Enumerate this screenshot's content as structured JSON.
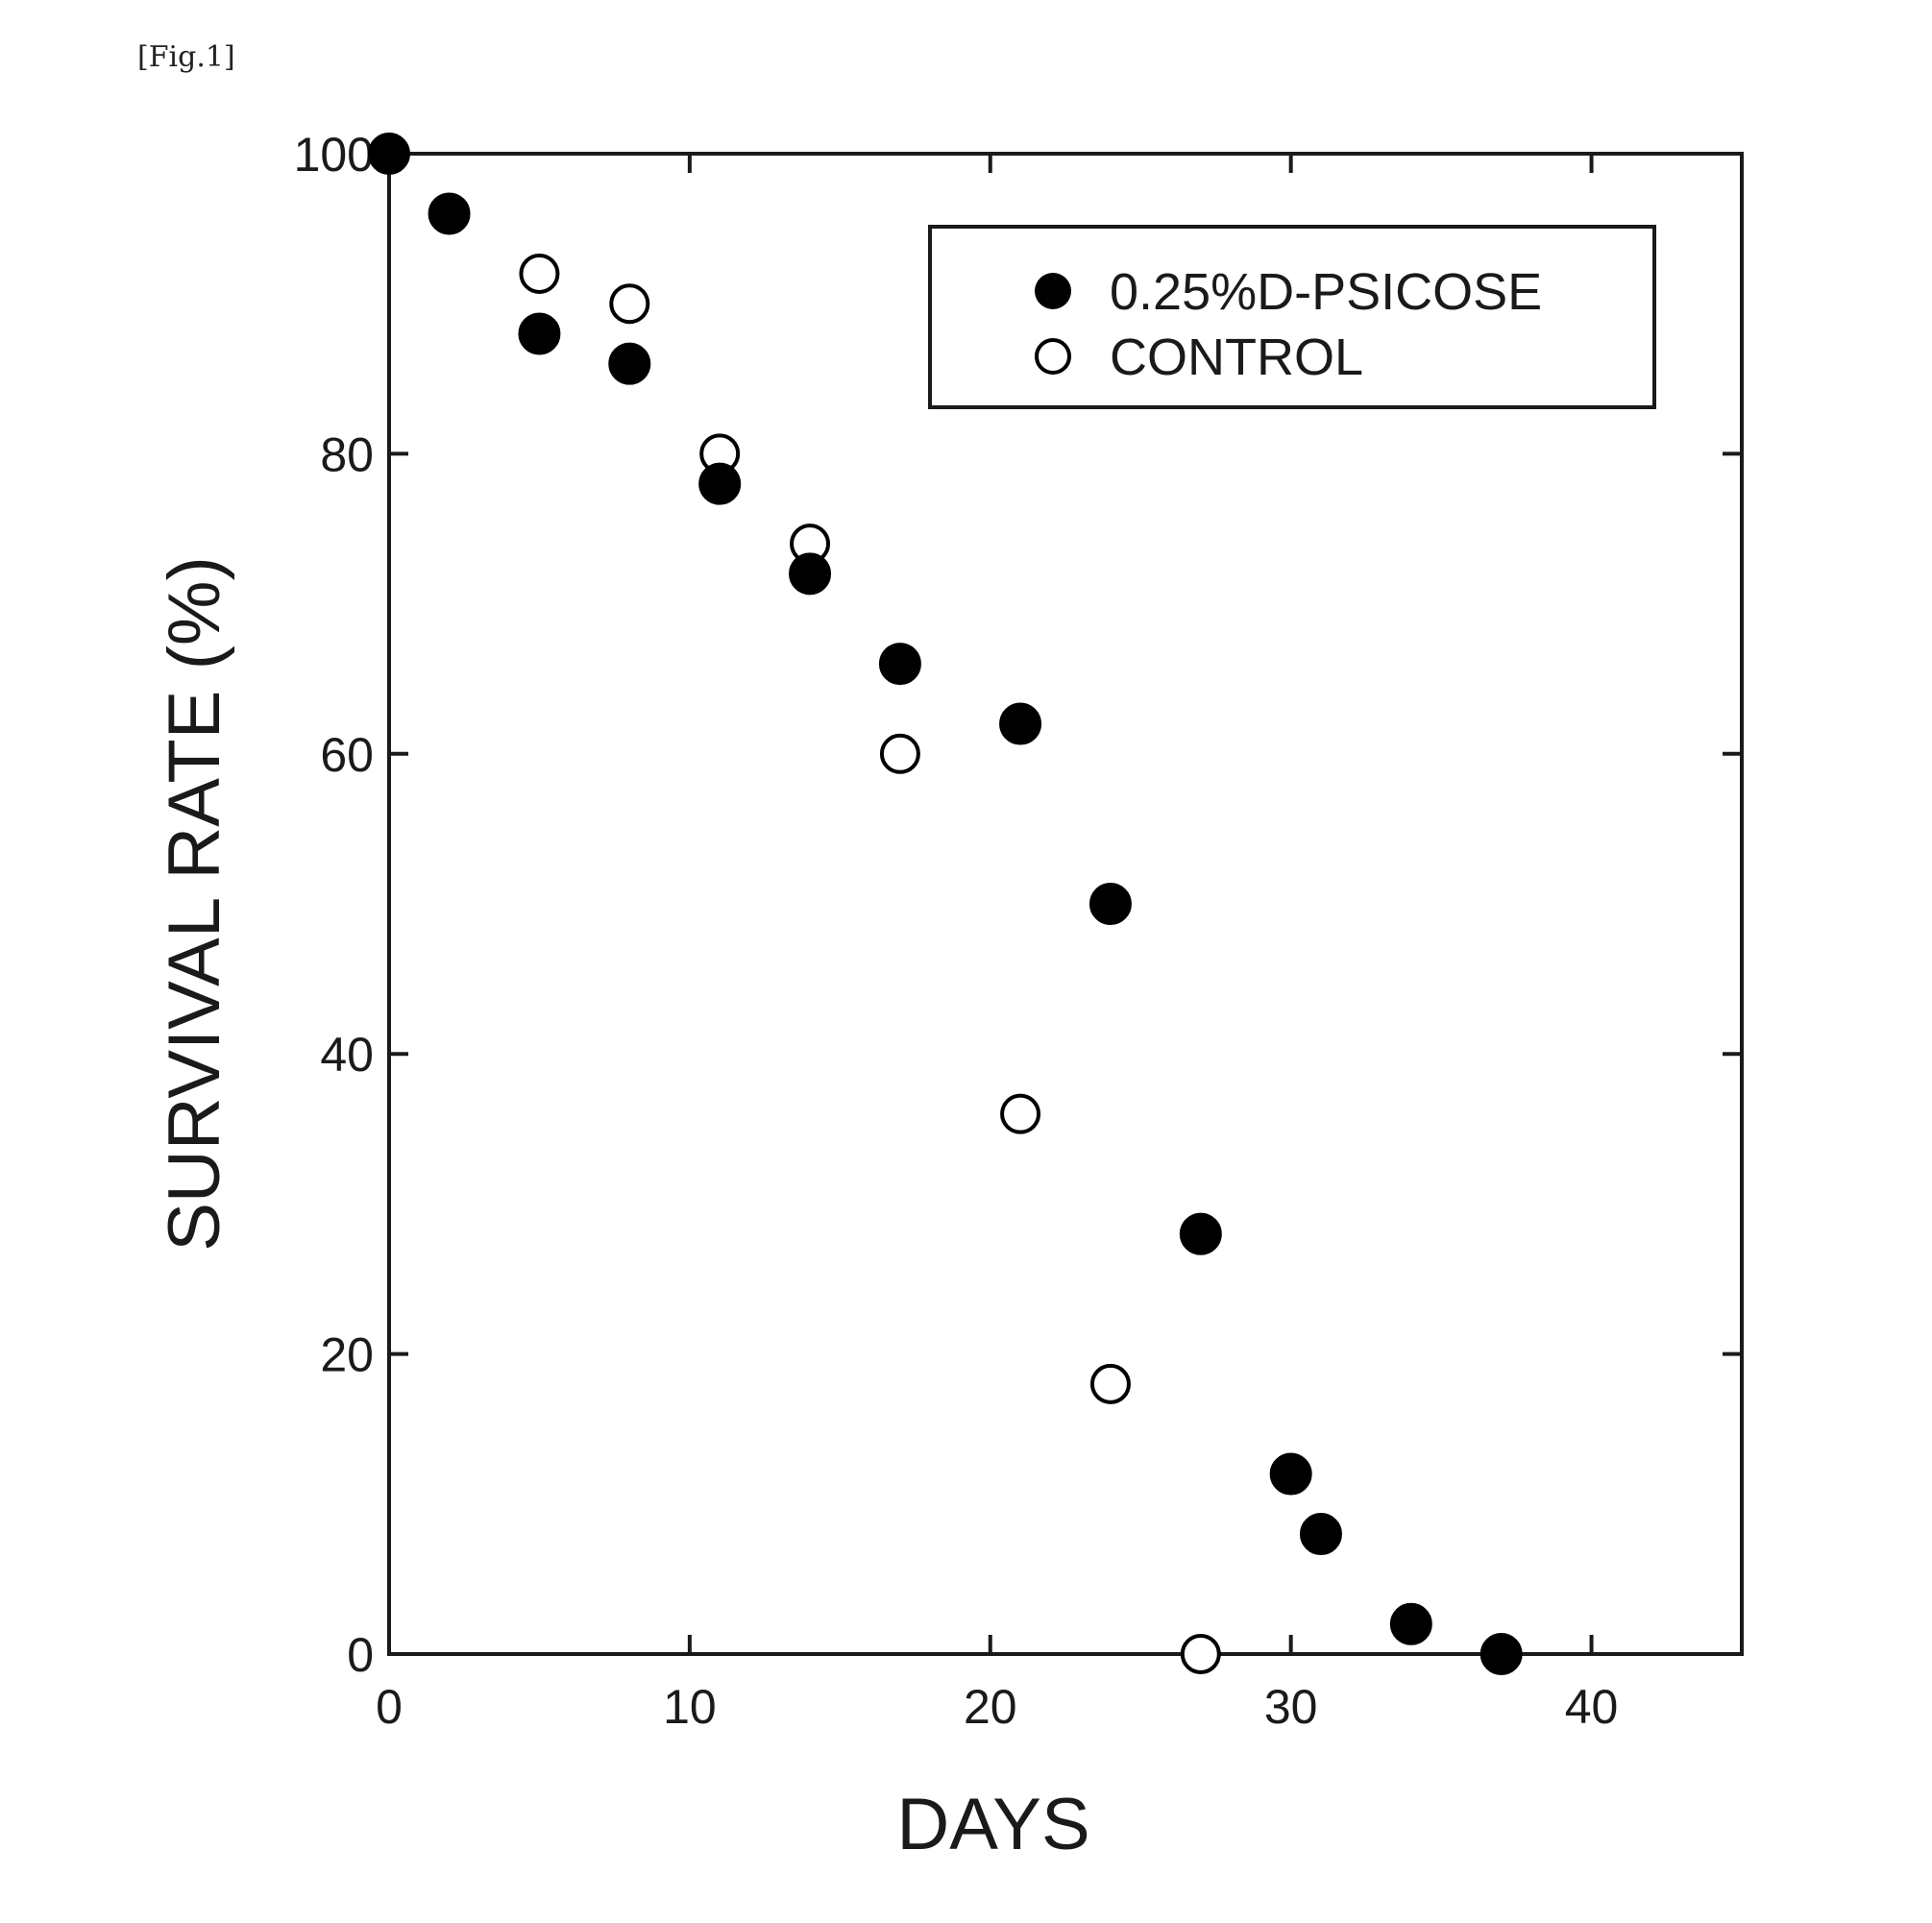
{
  "figure_label": "[Fig.1]",
  "chart_data": {
    "type": "scatter",
    "xlabel": "DAYS",
    "ylabel": "SURVIVAL RATE (%)",
    "xlim": [
      0,
      45
    ],
    "ylim": [
      0,
      100
    ],
    "xticks": [
      0,
      10,
      20,
      30,
      40
    ],
    "yticks": [
      0,
      20,
      40,
      60,
      80,
      100
    ],
    "grid": false,
    "legend_position": "top-right",
    "series": [
      {
        "name": "0.25%D-PSICOSE",
        "marker": "filled-circle",
        "color": "#000000",
        "x": [
          0,
          2,
          5,
          8,
          11,
          14,
          17,
          21,
          24,
          27,
          30,
          31,
          34,
          37
        ],
        "y": [
          100,
          96,
          88,
          86,
          78,
          72,
          66,
          62,
          50,
          28,
          12,
          8,
          2,
          0
        ]
      },
      {
        "name": "CONTROL",
        "marker": "open-circle",
        "color": "#000000",
        "x": [
          5,
          8,
          11,
          14,
          17,
          21,
          24,
          27
        ],
        "y": [
          92,
          90,
          80,
          74,
          60,
          36,
          18,
          0
        ]
      }
    ]
  }
}
